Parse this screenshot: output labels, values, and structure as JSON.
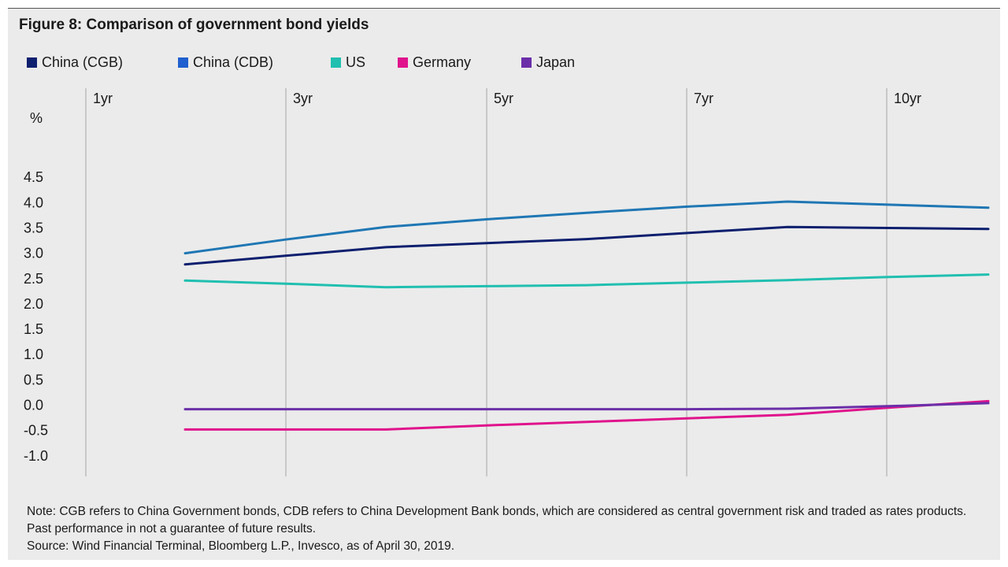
{
  "figure": {
    "title": "Figure 8: Comparison of government bond yields",
    "notes": [
      "Note: CGB refers to China Government bonds, CDB refers to China Development Bank bonds, which are considered as central government risk and traded as rates products. Past performance in not a guarantee of future results.",
      "Source: Wind Financial Terminal, Bloomberg L.P., Invesco, as of April 30, 2019."
    ]
  },
  "chart_data": {
    "type": "line",
    "title": "Figure 8: Comparison of government bond yields",
    "ylabel": "%",
    "xlabel": "",
    "ylim": [
      -1.0,
      4.5
    ],
    "yticks": [
      "4.5",
      "4.0",
      "3.5",
      "3.0",
      "2.5",
      "2.0",
      "1.5",
      "1.0",
      "0.5",
      "0.0",
      "-0.5",
      "-1.0"
    ],
    "section_labels": [
      "1yr",
      "3yr",
      "5yr",
      "7yr",
      "10yr"
    ],
    "x": [
      1,
      2,
      3,
      4,
      5,
      6,
      7,
      8,
      9
    ],
    "grid": "vertical section dividers",
    "legend_position": "top",
    "series": [
      {
        "name": "China (CGB)",
        "color": "#0d1f6e",
        "values": [
          2.78,
          2.95,
          3.12,
          3.2,
          3.28,
          3.4,
          3.52,
          3.5,
          3.48
        ]
      },
      {
        "name": "China (CDB)",
        "color": "#1f77b4",
        "values": [
          3.0,
          3.27,
          3.52,
          3.67,
          3.8,
          3.92,
          4.02,
          3.96,
          3.9
        ]
      },
      {
        "name": "US",
        "color": "#20bfb0",
        "values": [
          2.46,
          2.4,
          2.33,
          2.35,
          2.37,
          2.42,
          2.47,
          2.53,
          2.58
        ]
      },
      {
        "name": "Germany",
        "color": "#e0138c",
        "values": [
          -0.48,
          -0.48,
          -0.48,
          -0.4,
          -0.33,
          -0.26,
          -0.19,
          -0.05,
          0.08
        ]
      },
      {
        "name": "Japan",
        "color": "#6b2fa8",
        "values": [
          -0.08,
          -0.08,
          -0.08,
          -0.08,
          -0.08,
          -0.08,
          -0.07,
          -0.02,
          0.04
        ]
      }
    ],
    "legend_swatches": [
      "#0d1f6e",
      "#1f5fcf",
      "#20bfb0",
      "#e0138c",
      "#6b2fa8"
    ]
  }
}
